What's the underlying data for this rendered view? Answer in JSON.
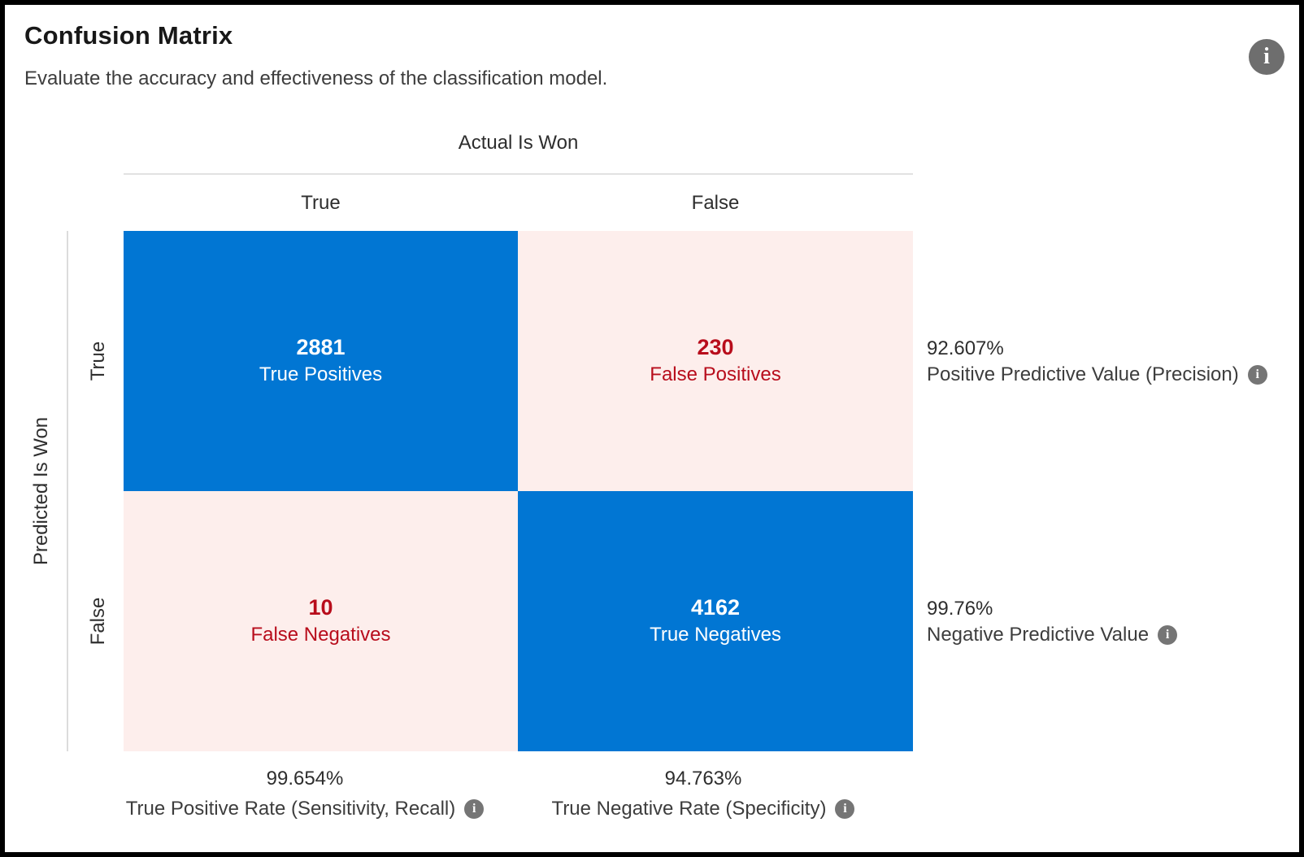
{
  "header": {
    "title": "Confusion Matrix",
    "subtitle": "Evaluate the accuracy and effectiveness of the classification model."
  },
  "icons": {
    "info_glyph": "i"
  },
  "matrix": {
    "x_axis_title": "Actual Is Won",
    "y_axis_title": "Predicted Is Won",
    "col_headers": [
      "True",
      "False"
    ],
    "row_headers": [
      "True",
      "False"
    ],
    "cells": {
      "tp": {
        "value": "2881",
        "label": "True Positives"
      },
      "fp": {
        "value": "230",
        "label": "False Positives"
      },
      "fn": {
        "value": "10",
        "label": "False Negatives"
      },
      "tn": {
        "value": "4162",
        "label": "True Negatives"
      }
    }
  },
  "metrics": {
    "precision": {
      "value": "92.607%",
      "label": "Positive Predictive Value (Precision)"
    },
    "npv": {
      "value": "99.76%",
      "label": "Negative Predictive Value"
    },
    "tpr": {
      "value": "99.654%",
      "label": "True Positive Rate (Sensitivity, Recall)"
    },
    "tnr": {
      "value": "94.763%",
      "label": "True Negative Rate (Specificity)"
    }
  },
  "colors": {
    "positive_cell": "#0176d3",
    "negative_cell_bg": "#fdeeec",
    "negative_text": "#b80d1c",
    "positive_text": "#ffffff",
    "divider": "#e2e2e2",
    "info_icon": "#6e6e6e",
    "text_dark": "#181818",
    "text_body": "#3d3d3d"
  },
  "chart_data": {
    "type": "heatmap",
    "title": "Confusion Matrix",
    "subtitle": "Evaluate the accuracy and effectiveness of the classification model.",
    "x_axis": {
      "title": "Actual Is Won",
      "categories": [
        "True",
        "False"
      ]
    },
    "y_axis": {
      "title": "Predicted Is Won",
      "categories": [
        "True",
        "False"
      ]
    },
    "cells": [
      {
        "predicted": "True",
        "actual": "True",
        "value": 2881,
        "label": "True Positives",
        "tone": "blue"
      },
      {
        "predicted": "True",
        "actual": "False",
        "value": 230,
        "label": "False Positives",
        "tone": "pink"
      },
      {
        "predicted": "False",
        "actual": "True",
        "value": 10,
        "label": "False Negatives",
        "tone": "pink"
      },
      {
        "predicted": "False",
        "actual": "False",
        "value": 4162,
        "label": "True Negatives",
        "tone": "blue"
      }
    ],
    "derived_metrics": [
      {
        "position": "right-row-1",
        "value": 92.607,
        "unit": "%",
        "label": "Positive Predictive Value (Precision)"
      },
      {
        "position": "right-row-2",
        "value": 99.76,
        "unit": "%",
        "label": "Negative Predictive Value"
      },
      {
        "position": "bottom-col-1",
        "value": 99.654,
        "unit": "%",
        "label": "True Positive Rate (Sensitivity, Recall)"
      },
      {
        "position": "bottom-col-2",
        "value": 94.763,
        "unit": "%",
        "label": "True Negative Rate (Specificity)"
      }
    ],
    "legend": "none",
    "grid": "off"
  }
}
